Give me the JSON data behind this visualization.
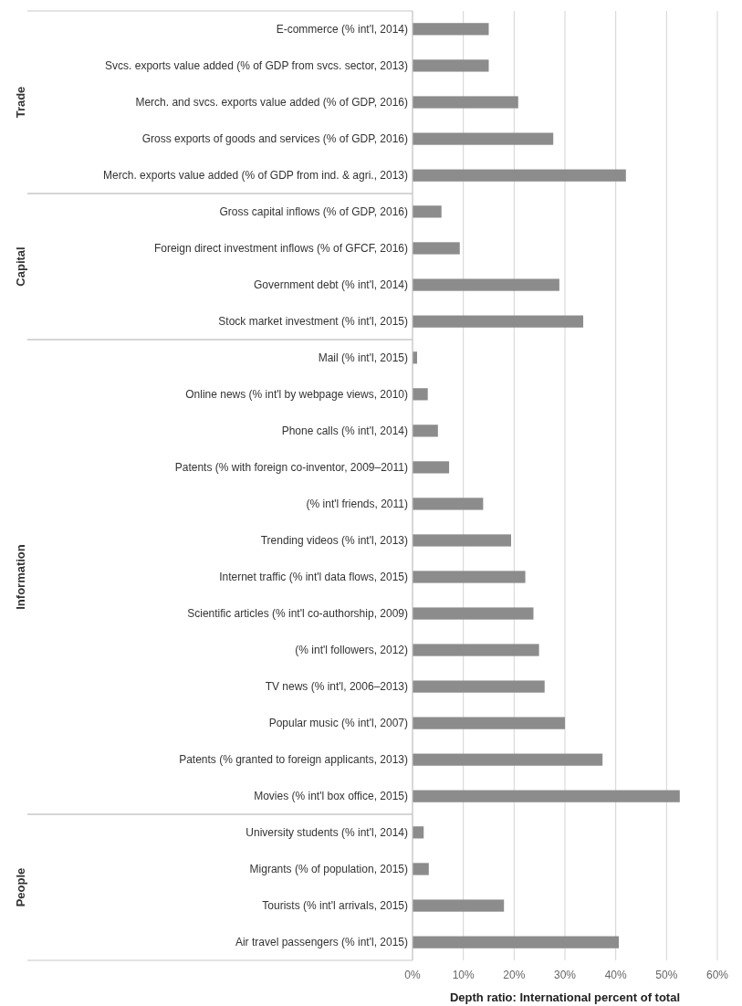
{
  "chart_data": [
    {
      "type": "bar",
      "orientation": "horizontal",
      "ylabel": "Trade",
      "color": "#8c8c8c",
      "xlim": [
        0,
        60
      ],
      "xticks": [
        0,
        10,
        20,
        30,
        40,
        50,
        60
      ],
      "grid": "x",
      "tick_labels": "y",
      "categories": [
        "E-commerce (% int'l, 2014)",
        "Svcs. exports value added (% of GDP from svcs. sector, 2013)",
        "Merch. and svcs. exports value added (% of GDP, 2016)",
        "Gross exports of goods and services (% of GDP, 2016)",
        "Merch. exports value added (% of GDP from ind. & agri., 2013)"
      ],
      "values": [
        15.0,
        15.0,
        20.8,
        27.7,
        42.0
      ]
    },
    {
      "type": "bar",
      "orientation": "horizontal",
      "ylabel": "Capital",
      "color": "#8c8c8c",
      "xlim": [
        0,
        60
      ],
      "xticks": [
        0,
        10,
        20,
        30,
        40,
        50,
        60
      ],
      "grid": "x",
      "tick_labels": "y",
      "categories": [
        "Gross capital inflows (% of GDP, 2016)",
        "Foreign direct investment inflows (% of GFCF, 2016)",
        "Government debt (% int'l, 2014)",
        "Stock market investment (% int'l, 2015)"
      ],
      "values": [
        5.7,
        9.3,
        28.9,
        33.6
      ]
    },
    {
      "type": "bar",
      "orientation": "horizontal",
      "ylabel": "Information",
      "color": "#8c8c8c",
      "xlim": [
        0,
        60
      ],
      "xticks": [
        0,
        10,
        20,
        30,
        40,
        50,
        60
      ],
      "grid": "x",
      "tick_labels": "y",
      "categories": [
        "Mail (% int'l, 2015)",
        "Online news (% int'l by webpage views, 2010)",
        "Phone calls (% int'l, 2014)",
        "Patents (% with foreign co-inventor, 2009–2011)",
        "(% int'l friends, 2011)",
        "Trending videos (% int'l, 2013)",
        "Internet traffic (% int'l data flows, 2015)",
        "Scientific articles (% int'l co-authorship, 2009)",
        "(% int'l followers, 2012)",
        "TV news (% int'l, 2006–2013)",
        "Popular music (% int'l, 2007)",
        "Patents (% granted to foreign applicants, 2013)",
        "Movies (% int'l box office, 2015)"
      ],
      "values": [
        0.9,
        3.0,
        5.0,
        7.2,
        13.9,
        19.4,
        22.2,
        23.8,
        24.9,
        26.0,
        30.0,
        37.4,
        52.6
      ]
    },
    {
      "type": "bar",
      "orientation": "horizontal",
      "ylabel": "People",
      "color": "#8c8c8c",
      "xlim": [
        0,
        60
      ],
      "grid": "x",
      "xlabel": "Depth ratio: International percent of total",
      "xticks": [
        {
          "value": 0,
          "label": "0%"
        },
        {
          "value": 10,
          "label": "10%"
        },
        {
          "value": 20,
          "label": "20%"
        },
        {
          "value": 30,
          "label": "30%"
        },
        {
          "value": 40,
          "label": "40%"
        },
        {
          "value": 50,
          "label": "50%"
        },
        {
          "value": 60,
          "label": "60%"
        }
      ],
      "categories": [
        "University students (% int'l, 2014)",
        "Migrants (% of population, 2015)",
        "Tourists (% int'l arrivals, 2015)",
        "Air travel passengers (% int'l, 2015)"
      ],
      "values": [
        2.2,
        3.2,
        18.0,
        40.6
      ]
    }
  ]
}
